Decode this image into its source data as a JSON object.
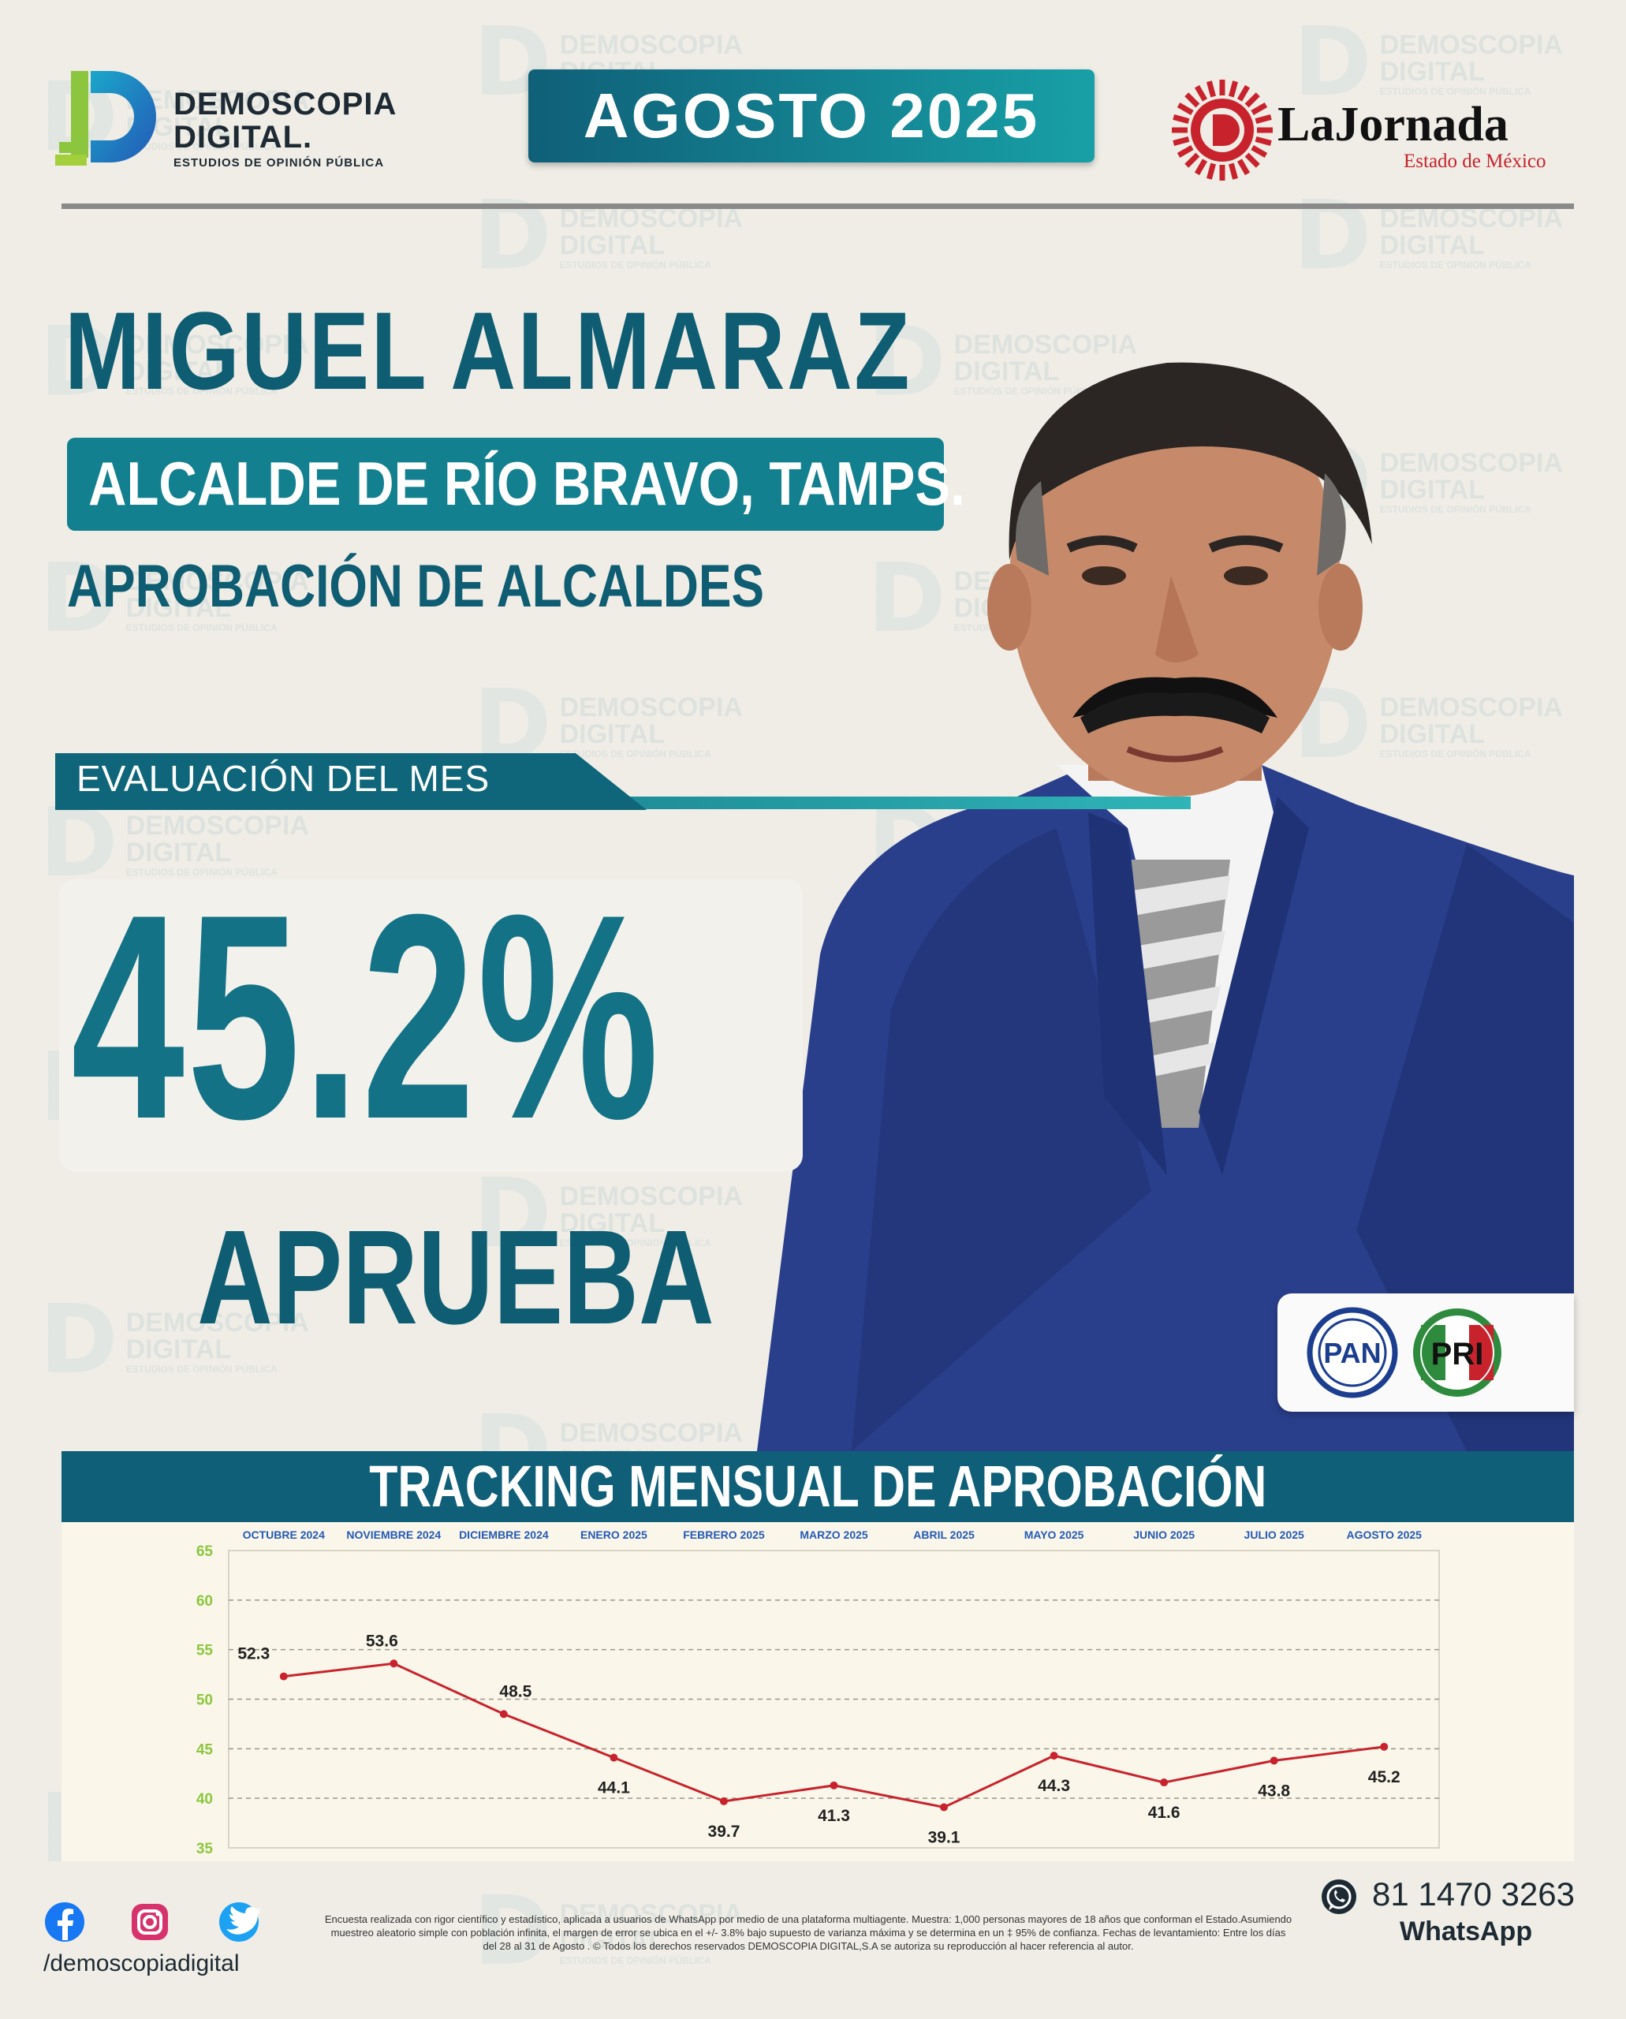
{
  "watermark": {
    "line1": "DEMOSCOPIA",
    "line2": "DIGITAL",
    "line3": "ESTUDIOS DE OPINIÓN PÚBLICA"
  },
  "header": {
    "logo_left": {
      "line1": "DEMOSCOPIA",
      "line2": "DIGITAL.",
      "tagline": "ESTUDIOS DE OPINIÓN PÚBLICA"
    },
    "month": "AGOSTO 2025",
    "logo_right": {
      "name": "LaJornada",
      "subtitle": "Estado de México"
    }
  },
  "person": {
    "name": "MIGUEL ALMARAZ",
    "role": "ALCALDE DE RÍO BRAVO, TAMPS.",
    "survey": "APROBACIÓN DE ALCALDES"
  },
  "evaluation": {
    "label": "EVALUACIÓN DEL MES",
    "percent": "45.2%",
    "verdict": "APRUEBA"
  },
  "parties": [
    "PAN",
    "PRI"
  ],
  "colors": {
    "teal_dark": "#0e5d72",
    "teal_mid": "#13808f",
    "teal_light": "#2fb5b7",
    "chart_line": "#c8232c",
    "pan_blue": "#1b3e8f",
    "pri_green": "#2e8b3e",
    "pri_red": "#c8232c"
  },
  "chart_data": {
    "type": "line",
    "title": "TRACKING MENSUAL DE APROBACIÓN",
    "categories": [
      "OCTUBRE 2024",
      "NOVIEMBRE 2024",
      "DICIEMBRE 2024",
      "ENERO 2025",
      "FEBRERO 2025",
      "MARZO 2025",
      "ABRIL 2025",
      "MAYO 2025",
      "JUNIO 2025",
      "JULIO 2025",
      "AGOSTO 2025"
    ],
    "values": [
      52.3,
      53.6,
      48.5,
      44.1,
      39.7,
      41.3,
      39.1,
      44.3,
      41.6,
      43.8,
      45.2
    ],
    "value_labels": [
      "52.3",
      "53.6",
      "48.5",
      "44.1",
      "39.7",
      "41.3",
      "39.1",
      "44.3",
      "41.6",
      "43.8",
      "45.2"
    ],
    "label_position": [
      "above",
      "above",
      "above",
      "below",
      "below",
      "below",
      "below",
      "below",
      "below",
      "below",
      "below"
    ],
    "ylim": [
      35,
      65
    ],
    "yticks": [
      35,
      40,
      45,
      50,
      55,
      60,
      65
    ],
    "ytick_labels": [
      "35",
      "40",
      "45",
      "50",
      "55",
      "60",
      "65"
    ],
    "xlabel": "",
    "ylabel": "",
    "grid": "horizontal-dashed",
    "category_axis": "top"
  },
  "footer": {
    "social_icons": [
      "facebook-icon",
      "instagram-icon",
      "twitter-icon"
    ],
    "handle": "/demoscopiadigital",
    "disclaimer": "Encuesta realizada con rigor científico y estadístico, aplicada a usuarios de WhatsApp por medio de una plataforma multiagente. Muestra: 1,000 personas mayores de 18 años que conforman el Estado.Asumiendo muestreo aleatorio simple con población infinita, el margen de error se ubica en el +/- 3.8% bajo supuesto de varianza máxima y se determina en un ‡ 95% de confianza. Fechas de levantamiento: Entre los días del 28 al 31 de Agosto . © Todos los derechos reservados DEMOSCOPIA DIGITAL,S.A se autoriza su reproducción al hacer referencia al autor.",
    "phone": "81 1470 3263",
    "whatsapp_label": "WhatsApp"
  }
}
